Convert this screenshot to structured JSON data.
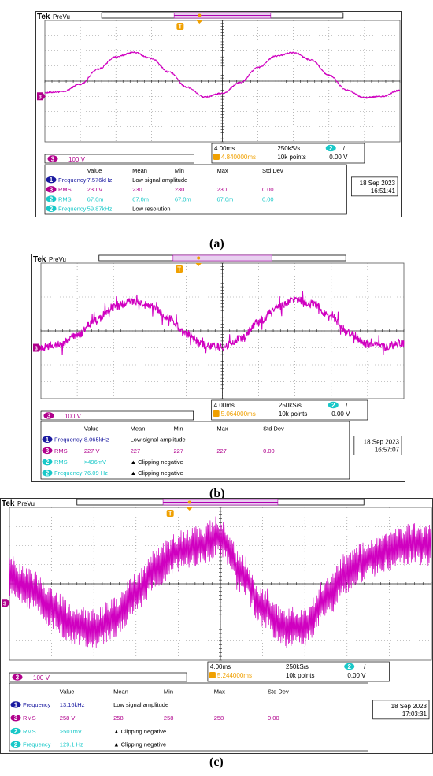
{
  "figure": {
    "brand": "Tek",
    "mode": "PreVu",
    "trigger_marker": "T",
    "channel3_marker": "3"
  },
  "panels": [
    {
      "caption": "(a)",
      "channel_label": "3",
      "channel_scale": "100 V",
      "timebase": "4.00ms",
      "sample_rate": "250kS/s",
      "trigger_channel": "2",
      "trigger_slope": "/",
      "trigger_position": "4.840000ms",
      "record_length": "10k points",
      "trigger_level": "0.00 V",
      "date": "18 Sep 2023",
      "time": "16:51:41",
      "headers": [
        "Value",
        "Mean",
        "Min",
        "Max",
        "Std Dev"
      ],
      "rows": [
        {
          "ch": "1",
          "name": "Frequency",
          "value": "7.576kHz",
          "note": "Low signal amplitude",
          "mean": "",
          "min": "",
          "max": "",
          "std": ""
        },
        {
          "ch": "3",
          "name": "RMS",
          "value": "230 V",
          "note": "",
          "mean": "230",
          "min": "230",
          "max": "230",
          "std": "0.00"
        },
        {
          "ch": "2",
          "name": "RMS",
          "value": "67.0m",
          "note": "",
          "mean": "67.0m",
          "min": "67.0m",
          "max": "67.0m",
          "std": "0.00"
        },
        {
          "ch": "2",
          "name": "Frequency",
          "value": "59.87kHz",
          "note": "Low resolution",
          "mean": "",
          "min": "",
          "max": "",
          "std": ""
        }
      ]
    },
    {
      "caption": "(b)",
      "channel_label": "3",
      "channel_scale": "100 V",
      "timebase": "4.00ms",
      "sample_rate": "250kS/s",
      "trigger_channel": "2",
      "trigger_slope": "/",
      "trigger_position": "5.064000ms",
      "record_length": "10k points",
      "trigger_level": "0.00 V",
      "date": "18 Sep 2023",
      "time": "16:57:07",
      "headers": [
        "Value",
        "Mean",
        "Min",
        "Max",
        "Std Dev"
      ],
      "rows": [
        {
          "ch": "1",
          "name": "Frequency",
          "value": "8.065kHz",
          "note": "Low signal amplitude",
          "mean": "",
          "min": "",
          "max": "",
          "std": ""
        },
        {
          "ch": "3",
          "name": "RMS",
          "value": "227 V",
          "note": "",
          "mean": "227",
          "min": "227",
          "max": "227",
          "std": "0.00"
        },
        {
          "ch": "2",
          "name": "RMS",
          "value": ">496mV",
          "note": "▲ Clipping negative",
          "mean": "",
          "min": "",
          "max": "",
          "std": ""
        },
        {
          "ch": "2",
          "name": "Frequency",
          "value": "76.09 Hz",
          "note": "▲ Clipping negative",
          "mean": "",
          "min": "",
          "max": "",
          "std": ""
        }
      ]
    },
    {
      "caption": "(c)",
      "channel_label": "3",
      "channel_scale": "100 V",
      "timebase": "4.00ms",
      "sample_rate": "250kS/s",
      "trigger_channel": "2",
      "trigger_slope": "/",
      "trigger_position": "5.244000ms",
      "record_length": "10k points",
      "trigger_level": "0.00 V",
      "date": "18 Sep 2023",
      "time": "17:03:31",
      "headers": [
        "Value",
        "Mean",
        "Min",
        "Max",
        "Std Dev"
      ],
      "rows": [
        {
          "ch": "1",
          "name": "Frequency",
          "value": "13.16kHz",
          "note": "Low signal amplitude",
          "mean": "",
          "min": "",
          "max": "",
          "std": ""
        },
        {
          "ch": "3",
          "name": "RMS",
          "value": "258 V",
          "note": "",
          "mean": "258",
          "min": "258",
          "max": "258",
          "std": "0.00"
        },
        {
          "ch": "2",
          "name": "RMS",
          "value": ">501mV",
          "note": "▲ Clipping negative",
          "mean": "",
          "min": "",
          "max": "",
          "std": ""
        },
        {
          "ch": "2",
          "name": "Frequency",
          "value": "129.1 Hz",
          "note": "▲ Clipping negative",
          "mean": "",
          "min": "",
          "max": "",
          "std": ""
        }
      ]
    }
  ],
  "colors": {
    "trace": "#d000c0",
    "ch1": "#1a1aa0",
    "ch2": "#18c8c8",
    "ch3": "#b0008c",
    "trigger": "#f0a000",
    "grid": "#8a8a8a",
    "screen_bg": "#ffffff"
  },
  "chart_data": [
    {
      "type": "line",
      "title": "",
      "xlabel": "",
      "ylabel": "",
      "x_divisions": 10,
      "y_divisions": 8,
      "grid": true,
      "series": [
        {
          "x_div": [
            0,
            0.5,
            1,
            1.5,
            2,
            2.5,
            3,
            3.5,
            4,
            4.5,
            5,
            5.5,
            6,
            6.5,
            7,
            7.5,
            8,
            8.5,
            9,
            9.5,
            10
          ],
          "y_div": [
            -0.75,
            -0.7,
            -0.2,
            0.8,
            1.6,
            1.9,
            1.5,
            0.6,
            -0.4,
            -1.05,
            -0.8,
            -0.1,
            0.9,
            1.65,
            1.9,
            1.4,
            0.4,
            -0.6,
            -1.1,
            -1.0,
            -0.6
          ],
          "noise_div": 0.05
        }
      ]
    },
    {
      "type": "line",
      "title": "",
      "xlabel": "",
      "ylabel": "",
      "x_divisions": 10,
      "y_divisions": 8,
      "grid": true,
      "series": [
        {
          "x_div": [
            0,
            0.5,
            1,
            1.5,
            2,
            2.5,
            3,
            3.5,
            4,
            4.5,
            5,
            5.5,
            6,
            6.5,
            7,
            7.5,
            8,
            8.5,
            9,
            9.5,
            10
          ],
          "y_div": [
            -0.95,
            -0.8,
            -0.25,
            0.6,
            1.4,
            1.75,
            1.5,
            0.8,
            -0.15,
            -0.85,
            -0.95,
            -0.45,
            0.5,
            1.4,
            1.85,
            1.6,
            0.8,
            -0.15,
            -0.8,
            -0.95,
            -0.75
          ],
          "noise_div": 0.22
        }
      ]
    },
    {
      "type": "line",
      "title": "",
      "xlabel": "",
      "ylabel": "",
      "x_divisions": 10,
      "y_divisions": 8,
      "grid": true,
      "series": [
        {
          "x_div": [
            0,
            0.5,
            1,
            1.5,
            2,
            2.5,
            3,
            3.5,
            4,
            4.5,
            5,
            5.5,
            6,
            6.5,
            7,
            7.5,
            8,
            8.5,
            9,
            9.5,
            10
          ],
          "y_div": [
            0.4,
            -0.3,
            -1.3,
            -2.1,
            -2.4,
            -1.8,
            -0.5,
            0.9,
            1.7,
            2.0,
            2.5,
            0.5,
            -1.2,
            -2.3,
            -2.2,
            -0.8,
            0.6,
            1.3,
            1.7,
            2.1,
            2.0
          ],
          "noise_div": 0.9
        }
      ]
    }
  ]
}
